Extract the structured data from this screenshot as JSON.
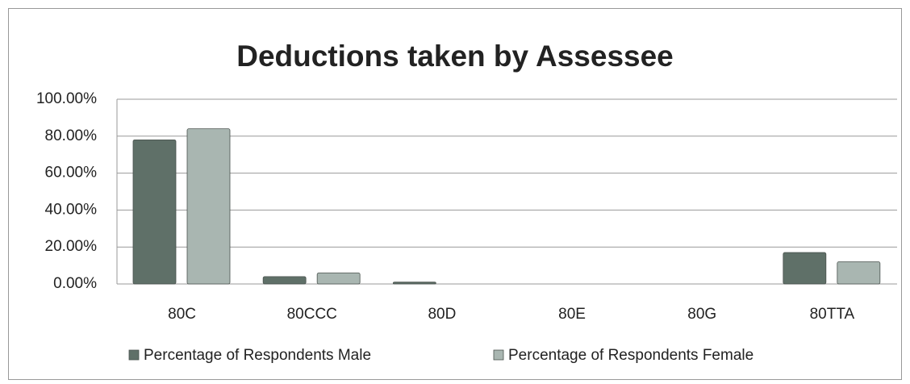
{
  "chart_data": {
    "type": "bar",
    "title": "Deductions taken by Assessee",
    "categories": [
      "80C",
      "80CCC",
      "80D",
      "80E",
      "80G",
      "80TTA"
    ],
    "series": [
      {
        "name": "Percentage of Respondents Male",
        "color": "#5f7068",
        "values": [
          78,
          4,
          1,
          0,
          0,
          17
        ]
      },
      {
        "name": "Percentage of Respondents Female",
        "color": "#a9b6b1",
        "values": [
          84,
          6,
          0,
          0,
          0,
          12
        ]
      }
    ],
    "ylim": [
      0,
      100
    ],
    "yticks": [
      {
        "value": 0,
        "label": "0.00%"
      },
      {
        "value": 20,
        "label": "20.00%"
      },
      {
        "value": 40,
        "label": "40.00%"
      },
      {
        "value": 60,
        "label": "60.00%"
      },
      {
        "value": 80,
        "label": "80.00%"
      },
      {
        "value": 100,
        "label": "100.00%"
      }
    ],
    "grid": true
  }
}
